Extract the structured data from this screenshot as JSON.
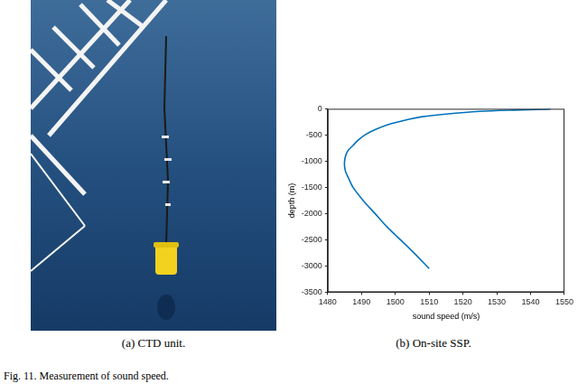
{
  "chart_data": {
    "type": "line",
    "xlabel": "sound speed (m/s)",
    "ylabel": "depth (m)",
    "x": [
      1546,
      1544,
      1535,
      1525,
      1515,
      1508,
      1504,
      1498,
      1494,
      1491,
      1489,
      1487.5,
      1486,
      1485.3,
      1485,
      1485,
      1485.3,
      1486,
      1487.5,
      1490.5,
      1494,
      1497.5,
      1501.5,
      1505.5,
      1510
    ],
    "values": [
      0,
      -10,
      -25,
      -50,
      -100,
      -150,
      -200,
      -300,
      -400,
      -500,
      -600,
      -700,
      -800,
      -900,
      -1000,
      -1100,
      -1200,
      -1300,
      -1500,
      -1750,
      -2000,
      -2250,
      -2500,
      -2750,
      -3050
    ],
    "color": "#0072bd",
    "xlim": [
      1480,
      1550
    ],
    "xticks": [
      1480,
      1490,
      1500,
      1510,
      1520,
      1530,
      1540,
      1550
    ],
    "ylim": [
      -3500,
      0
    ],
    "yticks": [
      -3500,
      -3000,
      -2500,
      -2000,
      -1500,
      -1000,
      -500,
      0
    ],
    "grid": false
  },
  "captions": {
    "a": "(a) CTD unit.",
    "b": "(b) On-site SSP.",
    "figure": "Fig. 11.  Measurement of sound speed."
  }
}
